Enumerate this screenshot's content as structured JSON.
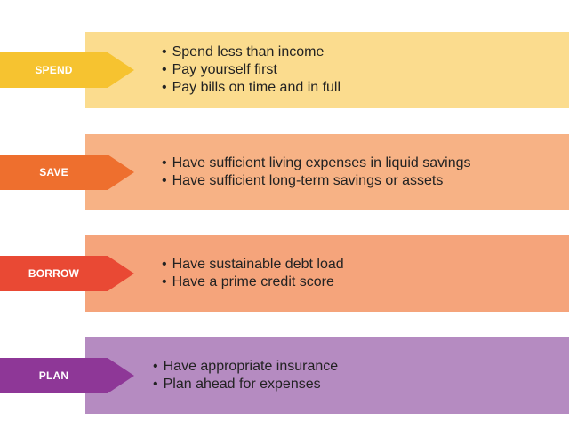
{
  "colors": {
    "spend_band": "#fbdc8e",
    "spend_arrow": "#f6c330",
    "save_band": "#f7b285",
    "save_arrow": "#ee6f2e",
    "borrow_band": "#f5a47b",
    "borrow_arrow": "#e94934",
    "plan_band": "#b58bc1",
    "plan_arrow": "#8e3797"
  },
  "rows": [
    {
      "label": "SPEND",
      "items": [
        "Spend less than income",
        "Pay yourself first",
        "Pay bills on time and in full"
      ]
    },
    {
      "label": "SAVE",
      "items": [
        "Have sufficient living expenses in liquid savings",
        "Have sufficient long-term savings or assets"
      ]
    },
    {
      "label": "BORROW",
      "items": [
        "Have sustainable debt load",
        "Have a prime credit score"
      ]
    },
    {
      "label": "PLAN",
      "items": [
        "Have appropriate insurance",
        "Plan ahead for expenses"
      ]
    }
  ]
}
